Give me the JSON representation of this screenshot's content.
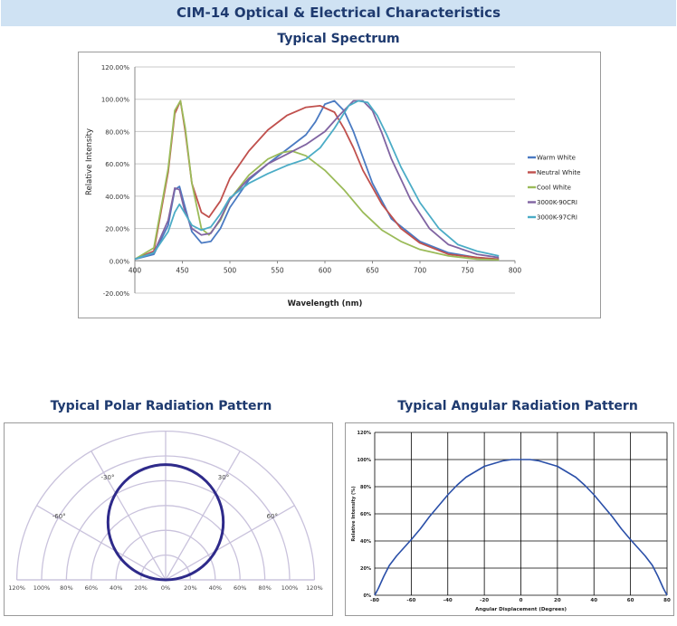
{
  "header": {
    "title": "CIM-14 Optical & Electrical Characteristics"
  },
  "spectrum": {
    "section_title": "Typical Spectrum"
  },
  "polar": {
    "section_title": "Typical Polar Radiation Pattern"
  },
  "angular": {
    "section_title": "Typical Angular Radiation Pattern"
  },
  "chart_data": [
    {
      "type": "line",
      "title": "Typical Spectrum",
      "xlabel": "Wavelength (nm)",
      "ylabel": "Relative Intensity",
      "xlim": [
        400,
        800
      ],
      "ylim": [
        -0.2,
        1.2
      ],
      "x_ticks": [
        "400",
        "450",
        "500",
        "550",
        "600",
        "650",
        "700",
        "750",
        "800"
      ],
      "y_ticks": [
        "-20.00%",
        "0.00%",
        "20.00%",
        "40.00%",
        "60.00%",
        "80.00%",
        "100.00%",
        "120.00%"
      ],
      "grid": "horizontal",
      "legend": "right",
      "series": [
        {
          "name": "Warm White",
          "color": "#4a7ac2",
          "points": [
            [
              400,
              0.01
            ],
            [
              420,
              0.04
            ],
            [
              435,
              0.22
            ],
            [
              442,
              0.44
            ],
            [
              447,
              0.46
            ],
            [
              452,
              0.35
            ],
            [
              460,
              0.18
            ],
            [
              470,
              0.11
            ],
            [
              480,
              0.12
            ],
            [
              490,
              0.2
            ],
            [
              500,
              0.33
            ],
            [
              520,
              0.5
            ],
            [
              540,
              0.6
            ],
            [
              560,
              0.69
            ],
            [
              580,
              0.78
            ],
            [
              590,
              0.86
            ],
            [
              600,
              0.97
            ],
            [
              610,
              0.99
            ],
            [
              620,
              0.93
            ],
            [
              630,
              0.8
            ],
            [
              640,
              0.64
            ],
            [
              650,
              0.48
            ],
            [
              670,
              0.26
            ],
            [
              700,
              0.12
            ],
            [
              730,
              0.05
            ],
            [
              760,
              0.02
            ],
            [
              783,
              0.01
            ]
          ]
        },
        {
          "name": "Neutral White",
          "color": "#c0504d",
          "points": [
            [
              400,
              0.01
            ],
            [
              420,
              0.06
            ],
            [
              435,
              0.55
            ],
            [
              442,
              0.91
            ],
            [
              448,
              0.99
            ],
            [
              453,
              0.8
            ],
            [
              460,
              0.48
            ],
            [
              470,
              0.3
            ],
            [
              478,
              0.27
            ],
            [
              490,
              0.37
            ],
            [
              500,
              0.51
            ],
            [
              520,
              0.68
            ],
            [
              540,
              0.81
            ],
            [
              560,
              0.9
            ],
            [
              580,
              0.95
            ],
            [
              595,
              0.96
            ],
            [
              610,
              0.92
            ],
            [
              620,
              0.82
            ],
            [
              630,
              0.7
            ],
            [
              640,
              0.56
            ],
            [
              660,
              0.35
            ],
            [
              680,
              0.2
            ],
            [
              700,
              0.11
            ],
            [
              730,
              0.04
            ],
            [
              760,
              0.02
            ],
            [
              783,
              0.01
            ]
          ]
        },
        {
          "name": "Cool White",
          "color": "#9bbb59",
          "points": [
            [
              400,
              0.01
            ],
            [
              420,
              0.08
            ],
            [
              435,
              0.57
            ],
            [
              442,
              0.93
            ],
            [
              448,
              0.99
            ],
            [
              453,
              0.82
            ],
            [
              460,
              0.48
            ],
            [
              470,
              0.2
            ],
            [
              478,
              0.16
            ],
            [
              490,
              0.25
            ],
            [
              500,
              0.38
            ],
            [
              520,
              0.53
            ],
            [
              540,
              0.63
            ],
            [
              555,
              0.67
            ],
            [
              565,
              0.68
            ],
            [
              580,
              0.65
            ],
            [
              600,
              0.56
            ],
            [
              620,
              0.44
            ],
            [
              640,
              0.3
            ],
            [
              660,
              0.19
            ],
            [
              680,
              0.12
            ],
            [
              700,
              0.07
            ],
            [
              730,
              0.03
            ],
            [
              760,
              0.01
            ],
            [
              783,
              0.005
            ]
          ]
        },
        {
          "name": "3000K-90CRI",
          "color": "#8064a2",
          "points": [
            [
              400,
              0.01
            ],
            [
              420,
              0.05
            ],
            [
              435,
              0.25
            ],
            [
              442,
              0.45
            ],
            [
              447,
              0.44
            ],
            [
              452,
              0.32
            ],
            [
              460,
              0.2
            ],
            [
              470,
              0.16
            ],
            [
              480,
              0.17
            ],
            [
              490,
              0.26
            ],
            [
              500,
              0.38
            ],
            [
              520,
              0.51
            ],
            [
              540,
              0.6
            ],
            [
              560,
              0.66
            ],
            [
              580,
              0.72
            ],
            [
              600,
              0.8
            ],
            [
              615,
              0.9
            ],
            [
              630,
              0.99
            ],
            [
              640,
              0.99
            ],
            [
              650,
              0.93
            ],
            [
              660,
              0.79
            ],
            [
              670,
              0.63
            ],
            [
              690,
              0.38
            ],
            [
              710,
              0.2
            ],
            [
              730,
              0.1
            ],
            [
              760,
              0.04
            ],
            [
              783,
              0.02
            ]
          ]
        },
        {
          "name": "3000K-97CRI",
          "color": "#4bacc6",
          "points": [
            [
              400,
              0.01
            ],
            [
              420,
              0.05
            ],
            [
              435,
              0.18
            ],
            [
              442,
              0.3
            ],
            [
              447,
              0.35
            ],
            [
              452,
              0.3
            ],
            [
              460,
              0.22
            ],
            [
              470,
              0.19
            ],
            [
              480,
              0.21
            ],
            [
              490,
              0.29
            ],
            [
              500,
              0.39
            ],
            [
              520,
              0.48
            ],
            [
              540,
              0.54
            ],
            [
              560,
              0.59
            ],
            [
              580,
              0.63
            ],
            [
              595,
              0.7
            ],
            [
              610,
              0.82
            ],
            [
              625,
              0.96
            ],
            [
              635,
              0.99
            ],
            [
              645,
              0.98
            ],
            [
              655,
              0.9
            ],
            [
              665,
              0.78
            ],
            [
              680,
              0.58
            ],
            [
              700,
              0.36
            ],
            [
              720,
              0.2
            ],
            [
              740,
              0.1
            ],
            [
              760,
              0.06
            ],
            [
              783,
              0.03
            ]
          ]
        }
      ]
    },
    {
      "type": "polar",
      "title": "Typical Polar Radiation Pattern",
      "angle_labels": [
        "-30°",
        "30°",
        "-60°",
        "60°"
      ],
      "radial_labels": [
        "120%",
        "100%",
        "80%",
        "60%",
        "40%",
        "20%",
        "0%",
        "20%",
        "40%",
        "60%",
        "80%",
        "100%",
        "120%"
      ],
      "series": [
        {
          "name": "pattern",
          "color": "#2e2a8a",
          "shape": "cos",
          "peak": 0.93
        }
      ]
    },
    {
      "type": "line",
      "title": "Typical Angular Radiation Pattern",
      "xlabel": "Angular Displacement (Degrees)",
      "ylabel": "Relative Intensity (%)",
      "xlim": [
        -80,
        80
      ],
      "ylim": [
        0,
        1.2
      ],
      "x_ticks": [
        "-80",
        "-60",
        "-40",
        "-20",
        "0",
        "20",
        "40",
        "60",
        "80"
      ],
      "y_ticks": [
        "0%",
        "20%",
        "40%",
        "60%",
        "80%",
        "100%",
        "120%"
      ],
      "grid": "both",
      "series": [
        {
          "name": "intensity",
          "color": "#2a4fa8",
          "points": [
            [
              -80,
              0.0
            ],
            [
              -78,
              0.05
            ],
            [
              -75,
              0.14
            ],
            [
              -72,
              0.22
            ],
            [
              -68,
              0.29
            ],
            [
              -64,
              0.35
            ],
            [
              -60,
              0.41
            ],
            [
              -55,
              0.49
            ],
            [
              -50,
              0.58
            ],
            [
              -45,
              0.66
            ],
            [
              -40,
              0.74
            ],
            [
              -35,
              0.81
            ],
            [
              -30,
              0.87
            ],
            [
              -25,
              0.91
            ],
            [
              -20,
              0.95
            ],
            [
              -15,
              0.97
            ],
            [
              -10,
              0.99
            ],
            [
              -5,
              1.0
            ],
            [
              0,
              1.0
            ],
            [
              5,
              1.0
            ],
            [
              10,
              0.99
            ],
            [
              15,
              0.97
            ],
            [
              20,
              0.95
            ],
            [
              25,
              0.91
            ],
            [
              30,
              0.87
            ],
            [
              35,
              0.81
            ],
            [
              40,
              0.74
            ],
            [
              45,
              0.66
            ],
            [
              50,
              0.58
            ],
            [
              55,
              0.49
            ],
            [
              60,
              0.41
            ],
            [
              64,
              0.35
            ],
            [
              68,
              0.29
            ],
            [
              72,
              0.22
            ],
            [
              75,
              0.14
            ],
            [
              78,
              0.05
            ],
            [
              80,
              0.0
            ]
          ]
        }
      ]
    }
  ]
}
